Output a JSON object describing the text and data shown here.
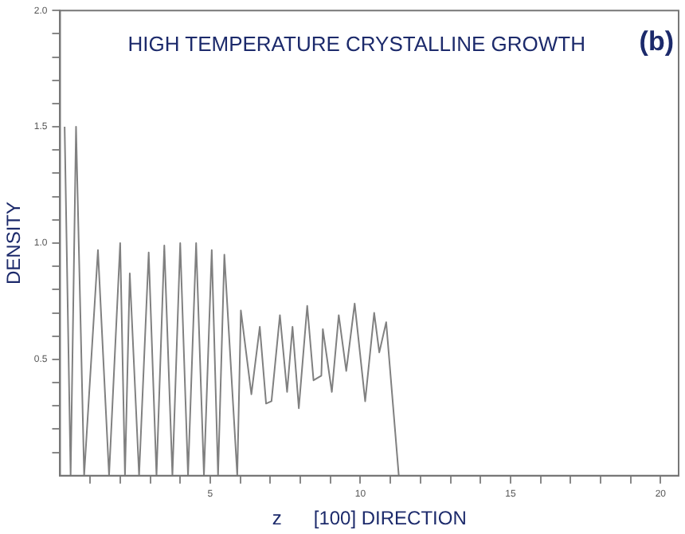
{
  "chart_data": {
    "type": "line",
    "title": "HIGH TEMPERATURE CRYSTALLINE GROWTH",
    "xlabel": "z      [100] DIRECTION",
    "ylabel": "DENSITY",
    "annotations": [
      "(b)"
    ],
    "x": [
      0.15,
      0.35,
      0.53,
      0.8,
      1.26,
      1.63,
      2.0,
      2.16,
      2.32,
      2.63,
      2.95,
      3.21,
      3.47,
      3.74,
      4.0,
      4.26,
      4.53,
      4.79,
      5.05,
      5.26,
      5.47,
      5.9,
      6.02,
      6.37,
      6.65,
      6.86,
      7.04,
      7.32,
      7.56,
      7.74,
      7.95,
      8.23,
      8.44,
      8.7,
      8.75,
      9.05,
      9.28,
      9.53,
      9.81,
      10.16,
      10.46,
      10.63,
      10.86,
      11.28
    ],
    "series": [
      {
        "color": "#808080",
        "values": [
          1.5,
          0,
          1.5,
          0,
          0.97,
          0,
          1.0,
          0,
          0.87,
          0,
          0.96,
          0,
          0.99,
          0,
          1.0,
          0,
          1.0,
          0,
          0.97,
          0,
          0.95,
          0,
          0.71,
          0.35,
          0.64,
          0.31,
          0.32,
          0.69,
          0.36,
          0.64,
          0.29,
          0.73,
          0.41,
          0.43,
          0.63,
          0.36,
          0.69,
          0.45,
          0.74,
          0.32,
          0.7,
          0.53,
          0.66,
          0
        ]
      }
    ],
    "xlim": [
      0,
      20.6
    ],
    "xticks": [
      {
        "value": 1,
        "label": null
      },
      {
        "value": 2,
        "label": null
      },
      {
        "value": 3,
        "label": null
      },
      {
        "value": 4,
        "label": null
      },
      5,
      {
        "value": 6,
        "label": null
      },
      {
        "value": 7,
        "label": null
      },
      {
        "value": 8,
        "label": null
      },
      {
        "value": 9,
        "label": null
      },
      10,
      {
        "value": 11,
        "label": null
      },
      {
        "value": 12,
        "label": null
      },
      {
        "value": 13,
        "label": null
      },
      {
        "value": 14,
        "label": null
      },
      15,
      {
        "value": 16,
        "label": null
      },
      {
        "value": 17,
        "label": null
      },
      {
        "value": 18,
        "label": null
      },
      {
        "value": 19,
        "label": null
      },
      20
    ],
    "ylim": [
      0,
      2
    ],
    "yticks": [
      {
        "value": 0.1,
        "label": null
      },
      {
        "value": 0.2,
        "label": null
      },
      {
        "value": 0.3,
        "label": null
      },
      {
        "value": 0.4,
        "label": null
      },
      0.5,
      {
        "value": 0.6,
        "label": null
      },
      {
        "value": 0.7,
        "label": null
      },
      {
        "value": 0.8,
        "label": null
      },
      {
        "value": 0.9,
        "label": null
      },
      {
        "value": 1,
        "label": "1.0"
      },
      {
        "value": 1.1,
        "label": null
      },
      {
        "value": 1.2,
        "label": null
      },
      {
        "value": 1.3,
        "label": null
      },
      {
        "value": 1.4,
        "label": null
      },
      1.5,
      {
        "value": 1.6,
        "label": null
      },
      {
        "value": 1.7,
        "label": null
      },
      {
        "value": 1.8,
        "label": null
      },
      {
        "value": 1.9,
        "label": null
      },
      {
        "value": 2,
        "label": "2.0"
      }
    ],
    "grid": false,
    "legend": false,
    "marker": "none",
    "line_style": "solid"
  }
}
